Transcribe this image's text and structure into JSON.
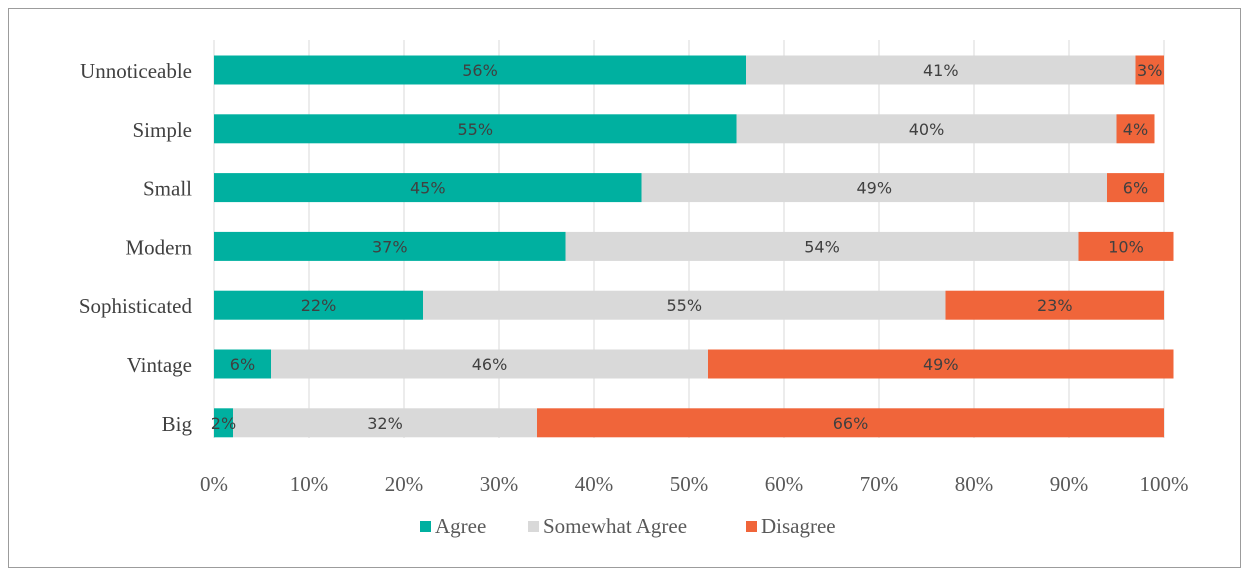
{
  "chart_data": {
    "type": "bar",
    "orientation": "horizontal",
    "stacked": true,
    "normalized": true,
    "categories": [
      "Unnoticeable",
      "Simple",
      "Small",
      "Modern",
      "Sophisticated",
      "Vintage",
      "Big"
    ],
    "series": [
      {
        "name": "Agree",
        "color": "#00b0a0",
        "values": [
          56,
          55,
          45,
          37,
          22,
          6,
          2
        ]
      },
      {
        "name": "Somewhat Agree",
        "color": "#d9d9d9",
        "values": [
          41,
          40,
          49,
          54,
          55,
          46,
          32
        ]
      },
      {
        "name": "Disagree",
        "color": "#f0653a",
        "values": [
          3,
          4,
          6,
          10,
          23,
          49,
          66
        ]
      }
    ],
    "data_labels": [
      [
        "56%",
        "41%",
        "3%"
      ],
      [
        "55%",
        "40%",
        "4%"
      ],
      [
        "45%",
        "49%",
        "6%"
      ],
      [
        "37%",
        "54%",
        "10%"
      ],
      [
        "22%",
        "55%",
        "23%"
      ],
      [
        "6%",
        "46%",
        "49%"
      ],
      [
        "2%",
        "32%",
        "66%"
      ]
    ],
    "xlim": [
      0,
      100
    ],
    "x_ticks": [
      0,
      10,
      20,
      30,
      40,
      50,
      60,
      70,
      80,
      90,
      100
    ],
    "x_tick_labels": [
      "0%",
      "10%",
      "20%",
      "30%",
      "40%",
      "50%",
      "60%",
      "70%",
      "80%",
      "90%",
      "100%"
    ],
    "grid": "vertical",
    "legend_position": "bottom",
    "title": "",
    "xlabel": "",
    "ylabel": ""
  }
}
